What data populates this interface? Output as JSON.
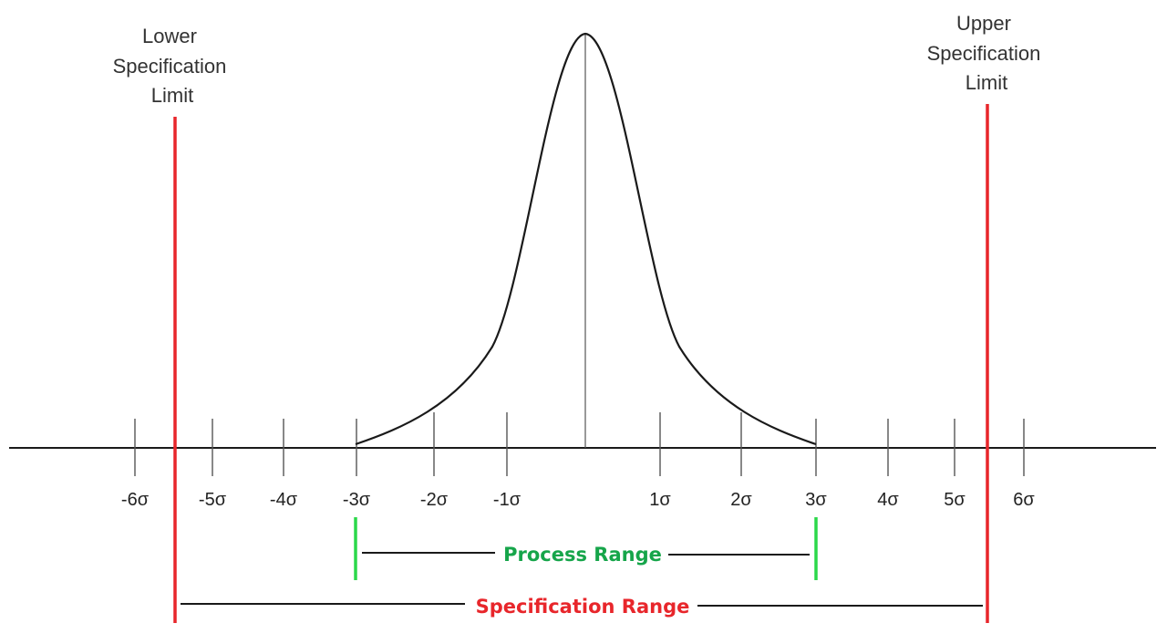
{
  "lower_limit_label": [
    "Lower",
    "Specification",
    "Limit"
  ],
  "upper_limit_label": [
    "Upper",
    "Specification",
    "Limit"
  ],
  "sigma_labels": [
    "-6σ",
    "-5σ",
    "-4σ",
    "-3σ",
    "-2σ",
    "-1σ",
    "1σ",
    "2σ",
    "3σ",
    "4σ",
    "5σ",
    "6σ"
  ],
  "process_range_label": "Process Range",
  "specification_range_label": "Specification Range",
  "colors": {
    "spec_limit": "#e8262b",
    "process_range": "#2bd84a",
    "process_text": "#16a54a",
    "spec_text": "#e8262b",
    "line": "#1a1a1a"
  }
}
